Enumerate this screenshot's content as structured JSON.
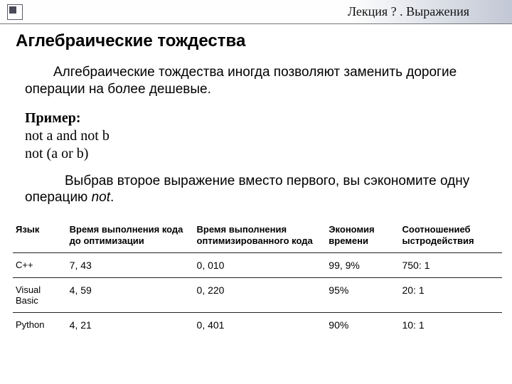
{
  "header": {
    "breadcrumb": "Лекция ? . Выражения"
  },
  "title": "Аглебраические тождества",
  "para1": "Алгебраические тождества иногда позволяют заменить дорогие операции на более дешевые.",
  "example": {
    "label": "Пример:",
    "line1": "not a and not b",
    "line2": "not (a or b)"
  },
  "para2_prefix": "Выбрав второе выражение вместо первого, вы сэкономите одну операцию ",
  "para2_italic": "not",
  "para2_suffix": ".",
  "table": {
    "columns": {
      "lang": "Язык",
      "before": "Время выполнения кода до оптимизации",
      "after": "Время выполнения оптимизированного кода",
      "save": "Экономия времени",
      "ratio": "Соотношениеб ыстродействия"
    },
    "rows": [
      {
        "lang": "C++",
        "before": "7, 43",
        "after": "0, 010",
        "save": "99, 9%",
        "ratio": "750: 1"
      },
      {
        "lang": "Visual Basic",
        "before": "4, 59",
        "after": "0, 220",
        "save": "95%",
        "ratio": "20: 1"
      },
      {
        "lang": "Python",
        "before": "4, 21",
        "after": "0, 401",
        "save": "90%",
        "ratio": "10: 1"
      }
    ]
  }
}
